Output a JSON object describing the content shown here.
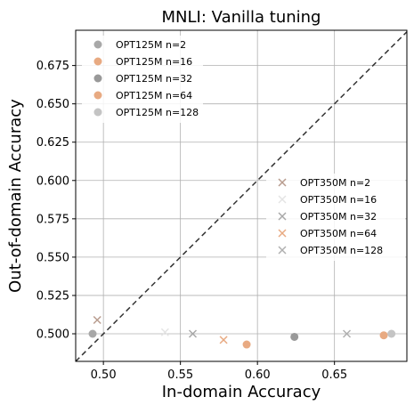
{
  "chart_data": {
    "type": "scatter",
    "title": "MNLI: Vanilla tuning",
    "xlabel": "In-domain Accuracy",
    "ylabel": "Out-of-domain Accuracy",
    "xlim": [
      0.482,
      0.697
    ],
    "ylim": [
      0.482,
      0.698
    ],
    "xticks": [
      {
        "value": 0.5,
        "label": "0.50"
      },
      {
        "value": 0.55,
        "label": "0.55"
      },
      {
        "value": 0.6,
        "label": "0.60"
      },
      {
        "value": 0.65,
        "label": "0.65"
      }
    ],
    "yticks": [
      {
        "value": 0.5,
        "label": "0.500"
      },
      {
        "value": 0.525,
        "label": "0.525"
      },
      {
        "value": 0.55,
        "label": "0.550"
      },
      {
        "value": 0.575,
        "label": "0.575"
      },
      {
        "value": 0.6,
        "label": "0.600"
      },
      {
        "value": 0.625,
        "label": "0.625"
      },
      {
        "value": 0.65,
        "label": "0.650"
      },
      {
        "value": 0.675,
        "label": "0.675"
      }
    ],
    "grid": true,
    "diagonal": true,
    "series": [
      {
        "name": "OPT125M n=2",
        "marker": "circle",
        "color": "#a8a8a8",
        "points": [
          [
            0.493,
            0.5
          ]
        ]
      },
      {
        "name": "OPT125M n=16",
        "marker": "circle",
        "color": "#e8aa82",
        "points": [
          [
            0.593,
            0.493
          ]
        ]
      },
      {
        "name": "OPT125M n=32",
        "marker": "circle",
        "color": "#999999",
        "points": [
          [
            0.624,
            0.498
          ]
        ]
      },
      {
        "name": "OPT125M n=64",
        "marker": "circle",
        "color": "#e8aa82",
        "points": [
          [
            0.682,
            0.499
          ]
        ]
      },
      {
        "name": "OPT125M n=128",
        "marker": "circle",
        "color": "#c4c4c4",
        "points": [
          [
            0.687,
            0.5
          ]
        ]
      },
      {
        "name": "OPT350M n=2",
        "marker": "x",
        "color": "#b89c8e",
        "points": [
          [
            0.496,
            0.509
          ]
        ]
      },
      {
        "name": "OPT350M n=16",
        "marker": "x",
        "color": "#e4e4e4",
        "points": [
          [
            0.54,
            0.501
          ]
        ]
      },
      {
        "name": "OPT350M n=32",
        "marker": "x",
        "color": "#a8a8a8",
        "points": [
          [
            0.558,
            0.5
          ]
        ]
      },
      {
        "name": "OPT350M n=64",
        "marker": "x",
        "color": "#e8aa82",
        "points": [
          [
            0.578,
            0.496
          ]
        ]
      },
      {
        "name": "OPT350M n=128",
        "marker": "x",
        "color": "#b0b0b0",
        "points": [
          [
            0.658,
            0.5
          ]
        ]
      }
    ],
    "legends": [
      {
        "position": "top-left",
        "series": [
          0,
          1,
          2,
          3,
          4
        ]
      },
      {
        "position": "center-right",
        "series": [
          5,
          6,
          7,
          8,
          9
        ]
      }
    ]
  }
}
